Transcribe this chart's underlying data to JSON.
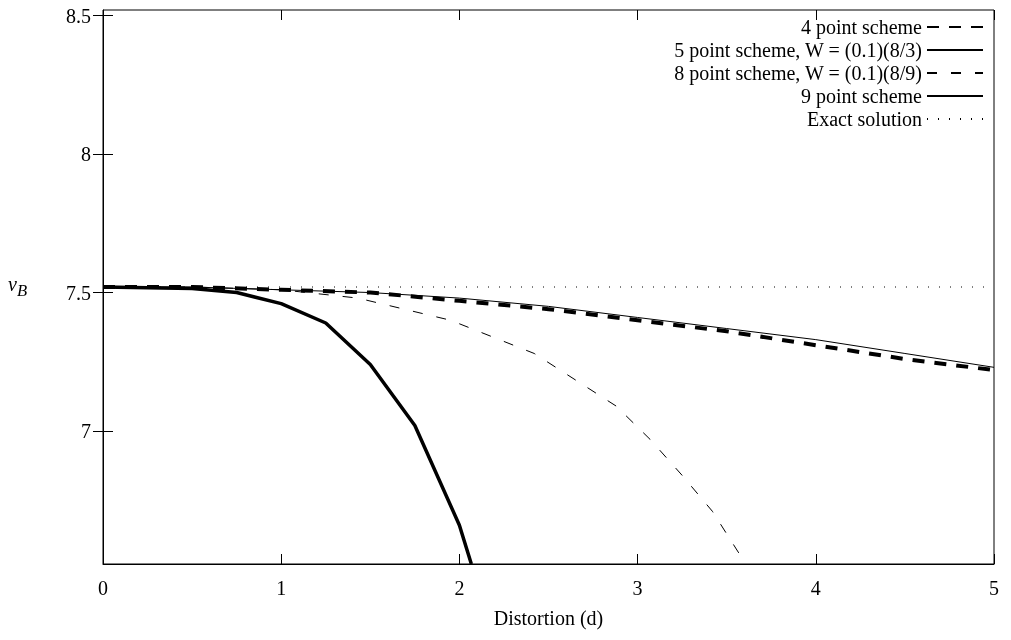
{
  "chart_data": {
    "type": "line",
    "xlabel": "Distortion (d)",
    "ylabel": "v$_{B}$",
    "x": [
      0,
      0.5,
      1,
      1.5,
      2,
      2.5,
      3,
      3.5,
      4,
      4.5,
      5
    ],
    "xlim": [
      0,
      5
    ],
    "ylim": [
      6.52,
      8.52
    ],
    "xticks": [
      0,
      1,
      2,
      3,
      4,
      5
    ],
    "yticks": [
      7,
      7.5,
      8,
      8.5
    ],
    "grid": false,
    "legend": "top right",
    "marker": "none",
    "series": [
      {
        "name": "4 point scheme",
        "color": "#000000",
        "line_style": "dashed",
        "values": [
          7.52,
          7.52,
          7.51,
          7.5,
          7.47,
          7.44,
          7.4,
          7.36,
          7.31,
          7.26,
          7.22
        ]
      },
      {
        "name": "5 point scheme, W = (0.1)(8/3)",
        "color": "#000000",
        "line_style": "solid",
        "values": [
          7.52,
          7.52,
          7.51,
          7.5,
          7.48,
          7.45,
          7.41,
          7.37,
          7.33,
          7.28,
          7.23
        ]
      },
      {
        "name": "8 point scheme, W = (0.1)(8/9)",
        "color": "#000000",
        "line_style": "dashed",
        "x": [
          0,
          0.5,
          1,
          1.43,
          1.95,
          2.42,
          2.88,
          3.07,
          3.25,
          3.42,
          3.607
        ],
        "values": [
          7.52,
          7.52,
          7.51,
          7.48,
          7.4,
          7.28,
          7.09,
          6.97,
          6.84,
          6.71,
          6.52
        ]
      },
      {
        "name": "9 point scheme",
        "color": "#000000",
        "line_style": "solid",
        "x": [
          0,
          0.5,
          0.75,
          1,
          1.25,
          1.5,
          1.75,
          2,
          2.067
        ],
        "values": [
          7.52,
          7.515,
          7.5,
          7.46,
          7.39,
          7.24,
          7.02,
          6.66,
          6.52
        ]
      },
      {
        "name": "Exact solution",
        "color": "#000000",
        "line_style": "dotted",
        "x": [
          0,
          5
        ],
        "values": [
          7.52,
          7.52
        ]
      }
    ]
  }
}
